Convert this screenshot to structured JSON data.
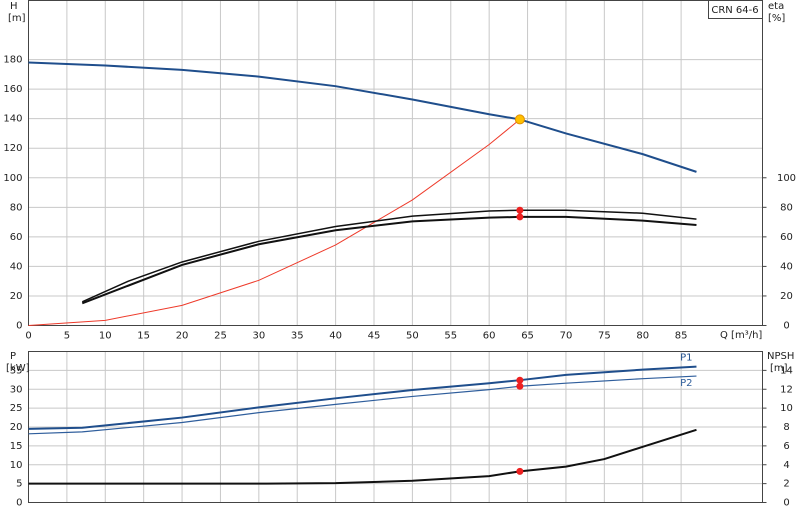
{
  "chart_data": [
    {
      "type": "line",
      "model": "CRN 64-6",
      "y_label": "H",
      "y_unit": "[m]",
      "y2_label": "eta",
      "y2_unit": "[%]",
      "x_label": "Q [m³/h]",
      "xlim": [
        0,
        95.6
      ],
      "xticks": [
        0,
        5,
        10,
        15,
        20,
        25,
        30,
        35,
        40,
        45,
        50,
        55,
        60,
        65,
        70,
        75,
        80,
        85
      ],
      "ylim": [
        0,
        220
      ],
      "yticks": [
        0,
        20,
        40,
        60,
        80,
        100,
        120,
        140,
        160,
        180
      ],
      "y2lim": [
        0,
        220
      ],
      "y2ticks": [
        0,
        20,
        40,
        60,
        80,
        100
      ],
      "grid": true,
      "series": [
        {
          "color": "#1f4e8c",
          "width": 2,
          "x": [
            0,
            10,
            20,
            30,
            40,
            50,
            60,
            64,
            70,
            80,
            87
          ],
          "values": [
            178,
            176,
            173,
            168.5,
            162,
            153,
            143,
            139.5,
            130,
            116,
            104
          ]
        },
        {
          "color": "#ee3a2a",
          "width": 1,
          "x": [
            0,
            10,
            20,
            30,
            40,
            50,
            60,
            64
          ],
          "values": [
            0,
            3.5,
            13.6,
            30.6,
            54.5,
            85,
            122.5,
            139.5
          ]
        },
        {
          "color": "#111111",
          "width": 1.5,
          "axis": "y2",
          "x": [
            7,
            13,
            20,
            30,
            40,
            50,
            60,
            64,
            70,
            80,
            87
          ],
          "values": [
            16,
            30,
            43,
            57,
            67,
            74,
            77.5,
            78,
            78,
            76,
            72
          ]
        },
        {
          "color": "#111111",
          "width": 2,
          "axis": "y2",
          "x": [
            7,
            20,
            30,
            40,
            50,
            60,
            64,
            70,
            80,
            87
          ],
          "values": [
            15,
            41,
            55,
            64.5,
            70.5,
            73,
            73.5,
            73.5,
            71,
            68
          ]
        }
      ],
      "points": [
        {
          "color": "#ffc000",
          "x": 64,
          "value": 139.5
        },
        {
          "color": "#ee2020",
          "axis": "y2",
          "x": 64,
          "value": 78
        },
        {
          "color": "#ee2020",
          "axis": "y2",
          "x": 64,
          "value": 73.5
        }
      ]
    },
    {
      "type": "line",
      "y_label": "P",
      "y_unit": "[kW]",
      "y2_label": "NPSH",
      "y2_unit": "[m]",
      "xlim": [
        0,
        95.6
      ],
      "ylim": [
        0,
        40
      ],
      "yticks": [
        0,
        5,
        10,
        15,
        20,
        25,
        30,
        35
      ],
      "y2lim": [
        0,
        16
      ],
      "y2ticks": [
        0,
        2,
        4,
        6,
        8,
        10,
        12,
        14
      ],
      "grid": true,
      "series": [
        {
          "name": "P1",
          "color": "#1f4e8c",
          "width": 2,
          "x": [
            0,
            7,
            20,
            30,
            40,
            50,
            60,
            64,
            70,
            80,
            87
          ],
          "values": [
            19.5,
            19.8,
            22.5,
            25.2,
            27.6,
            29.8,
            31.6,
            32.4,
            33.8,
            35.2,
            36
          ]
        },
        {
          "name": "P2",
          "color": "#2f5e9c",
          "width": 1.2,
          "x": [
            0,
            7,
            20,
            30,
            40,
            50,
            60,
            64,
            70,
            80,
            87
          ],
          "values": [
            18.2,
            18.7,
            21.2,
            23.8,
            26,
            28.1,
            29.9,
            30.8,
            31.6,
            32.8,
            33.5
          ]
        },
        {
          "color": "#111111",
          "width": 2,
          "axis": "y2",
          "x": [
            0,
            31,
            40,
            50,
            60,
            64,
            70,
            75,
            80,
            87
          ],
          "values": [
            2,
            2,
            2.05,
            2.3,
            2.8,
            3.3,
            3.8,
            4.6,
            5.9,
            7.7
          ]
        }
      ],
      "points": [
        {
          "color": "#ee2020",
          "x": 64,
          "value": 32.4
        },
        {
          "color": "#ee2020",
          "x": 64,
          "value": 30.8
        },
        {
          "color": "#ee2020",
          "axis": "y2",
          "x": 64,
          "value": 3.3
        }
      ]
    }
  ]
}
